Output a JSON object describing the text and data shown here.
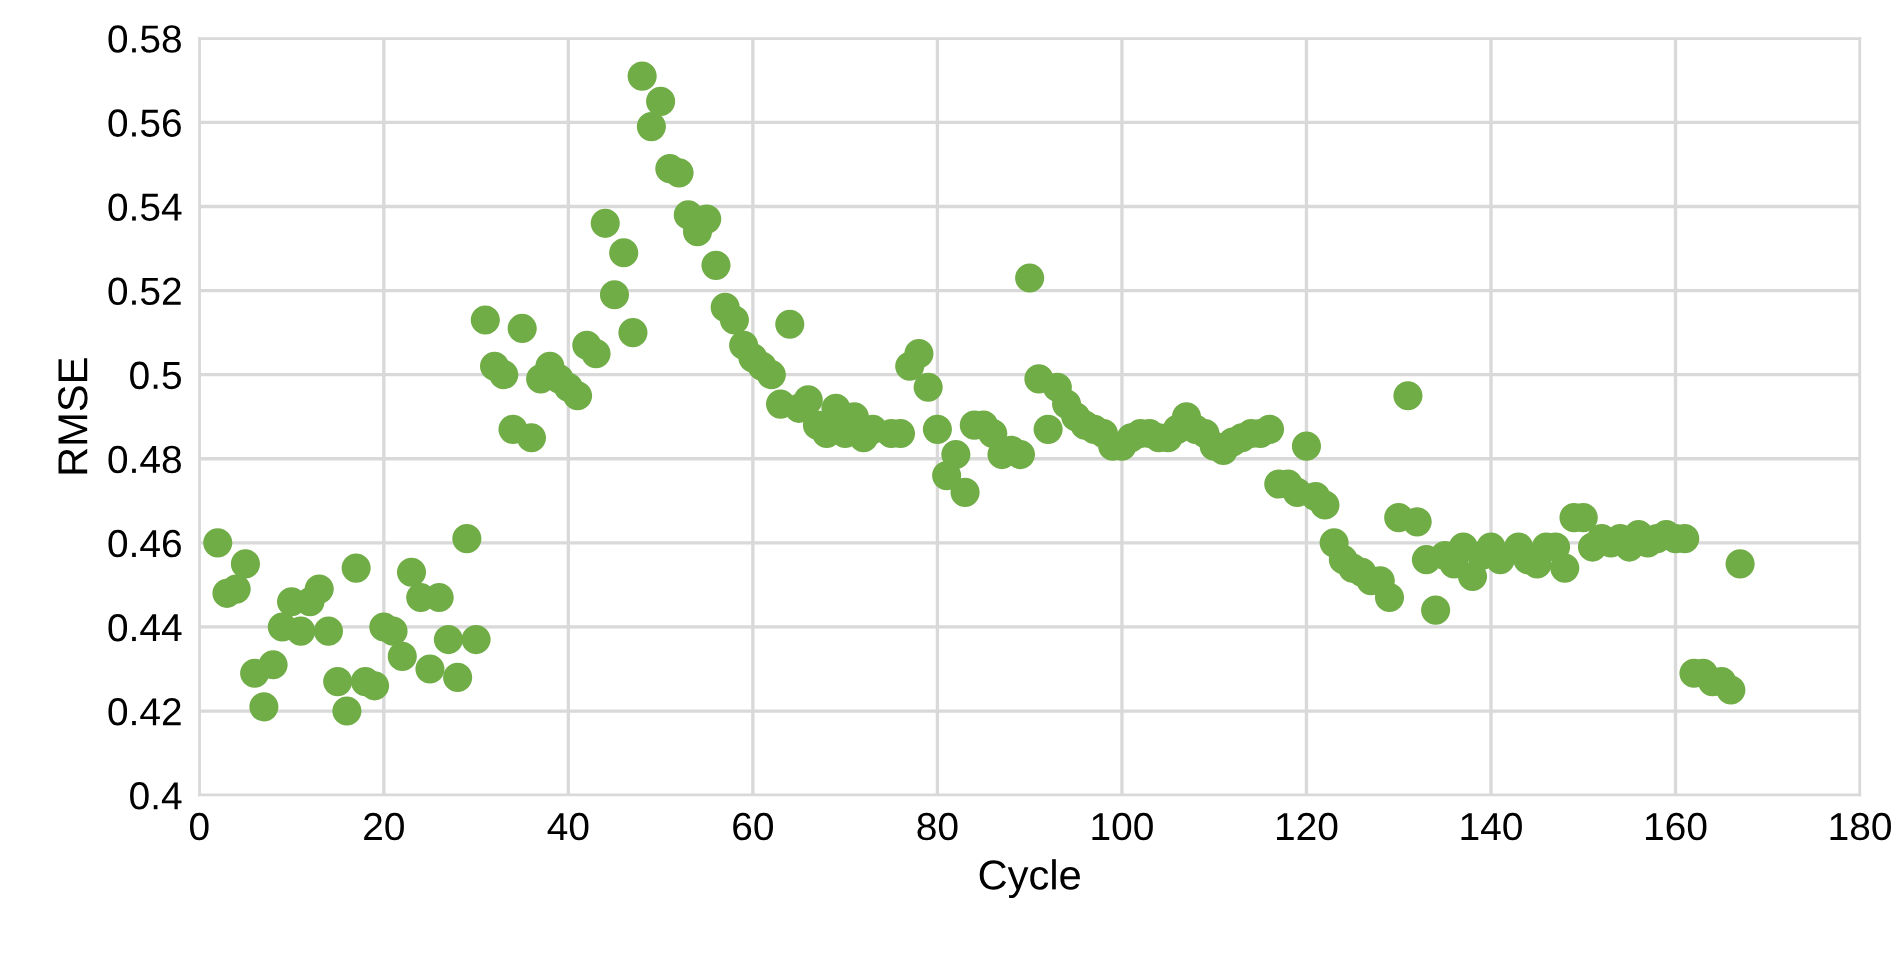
{
  "chart_data": {
    "type": "scatter",
    "xlabel": "Cycle",
    "ylabel": "RMSE",
    "x": [
      2,
      3,
      4,
      5,
      6,
      7,
      8,
      9,
      10,
      11,
      12,
      13,
      14,
      15,
      16,
      17,
      18,
      19,
      20,
      21,
      22,
      23,
      24,
      25,
      26,
      27,
      28,
      29,
      30,
      31,
      32,
      33,
      34,
      35,
      36,
      37,
      38,
      39,
      40,
      41,
      42,
      43,
      44,
      45,
      46,
      47,
      48,
      49,
      50,
      51,
      52,
      53,
      54,
      55,
      56,
      57,
      58,
      59,
      60,
      61,
      62,
      63,
      64,
      65,
      66,
      67,
      68,
      69,
      70,
      71,
      72,
      73,
      74,
      75,
      76,
      77,
      78,
      79,
      80,
      81,
      82,
      83,
      84,
      85,
      86,
      87,
      88,
      89,
      90,
      91,
      92,
      93,
      94,
      95,
      96,
      97,
      98,
      99,
      100,
      101,
      102,
      103,
      104,
      105,
      106,
      107,
      108,
      109,
      110,
      111,
      112,
      113,
      114,
      115,
      116,
      117,
      118,
      119,
      120,
      121,
      122,
      123,
      124,
      125,
      126,
      127,
      128,
      129,
      130,
      131,
      132,
      133,
      134,
      135,
      136,
      137,
      138,
      139,
      140,
      141,
      142,
      143,
      144,
      145,
      146,
      147,
      148,
      149,
      150,
      151,
      152,
      153,
      154,
      155,
      156,
      157,
      158,
      159,
      160,
      161,
      162,
      163,
      164,
      165,
      166,
      167
    ],
    "series": [
      {
        "color": "#70ad47",
        "values": [
          0.46,
          0.448,
          0.449,
          0.455,
          0.429,
          0.421,
          0.431,
          0.44,
          0.446,
          0.439,
          0.446,
          0.449,
          0.439,
          0.427,
          0.42,
          0.454,
          0.427,
          0.426,
          0.44,
          0.439,
          0.433,
          0.453,
          0.447,
          0.43,
          0.447,
          0.437,
          0.428,
          0.461,
          0.437,
          0.513,
          0.502,
          0.5,
          0.487,
          0.511,
          0.485,
          0.499,
          0.502,
          0.499,
          0.497,
          0.495,
          0.507,
          0.505,
          0.536,
          0.519,
          0.529,
          0.51,
          0.571,
          0.559,
          0.565,
          0.549,
          0.548,
          0.538,
          0.534,
          0.537,
          0.526,
          0.516,
          0.513,
          0.507,
          0.504,
          0.502,
          0.5,
          0.493,
          0.512,
          0.492,
          0.494,
          0.488,
          0.486,
          0.492,
          0.486,
          0.49,
          0.485,
          0.487,
          null,
          0.486,
          0.486,
          0.502,
          0.505,
          0.497,
          0.487,
          0.476,
          0.481,
          0.472,
          0.488,
          0.488,
          0.486,
          0.481,
          0.482,
          0.481,
          0.523,
          0.499,
          0.487,
          0.497,
          0.493,
          0.49,
          0.488,
          0.487,
          0.486,
          0.483,
          0.483,
          0.485,
          0.486,
          0.486,
          0.485,
          0.485,
          0.487,
          0.49,
          0.487,
          0.486,
          0.483,
          0.482,
          0.484,
          0.485,
          0.486,
          0.486,
          0.487,
          0.474,
          0.474,
          0.472,
          0.483,
          0.471,
          0.469,
          0.46,
          0.456,
          0.454,
          0.453,
          0.451,
          0.451,
          0.447,
          0.466,
          0.495,
          0.465,
          0.456,
          0.444,
          0.457,
          0.455,
          0.459,
          0.452,
          0.457,
          0.459,
          0.456,
          null,
          0.459,
          0.456,
          0.455,
          0.459,
          0.459,
          0.454,
          0.466,
          0.466,
          0.459,
          0.461,
          0.46,
          0.461,
          0.459,
          0.462,
          0.46,
          0.461,
          0.462,
          0.461,
          0.461,
          0.429,
          0.429,
          0.427,
          0.427,
          0.425,
          0.455
        ]
      }
    ],
    "xlim": [
      0,
      180
    ],
    "xticks": [
      0,
      20,
      40,
      60,
      80,
      100,
      120,
      140,
      160,
      180
    ],
    "ylim": [
      0.4,
      0.58
    ],
    "yticks": [
      0.4,
      0.42,
      0.44,
      0.46,
      0.48,
      0.5,
      0.52,
      0.54,
      0.56,
      0.58
    ],
    "grid": true,
    "marker": "circle"
  }
}
